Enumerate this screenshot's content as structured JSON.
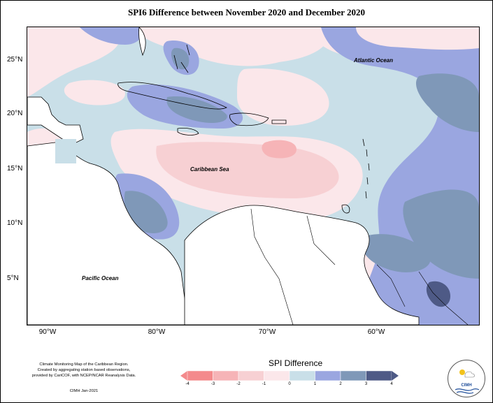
{
  "title": "SPI6 Difference between November 2020 and December 2020",
  "latitude_labels": [
    "25°N",
    "20°N",
    "15°N",
    "10°N",
    "5°N"
  ],
  "longitude_labels": [
    "90°W",
    "80°W",
    "70°W",
    "60°W"
  ],
  "places": {
    "atlantic": "Atlantic Ocean",
    "caribbean": "Caribbean Sea",
    "pacific": "Pacific Ocean"
  },
  "credit": {
    "line1": "Climate Monitoring Map of the Caribbean Region.",
    "line2": "Created by aggregating station based observations,",
    "line3": "provided by CariCOF, with NCEP/NCAR Reanalysis Data.",
    "stamp": "CIMH Jan-2021"
  },
  "legend": {
    "title": "SPI Difference",
    "ticks": [
      "-4",
      "-3",
      "-2",
      "-1",
      "0",
      "1",
      "2",
      "3",
      "4"
    ],
    "colors": [
      "#f48a8c",
      "#f6b4b7",
      "#f7d0d3",
      "#fbe7ea",
      "#ffffff",
      "#c9dfe8",
      "#9aa6e0",
      "#7f98b8",
      "#4e5a86"
    ]
  },
  "logo": {
    "text": "CIMH"
  },
  "palette": {
    "neg_strong": "#f48a8c",
    "neg_mid": "#f6b4b7",
    "neg_light": "#fbe7ea",
    "pos_light": "#c9dfe8",
    "pos_mid": "#9aa6e0",
    "pos_strong": "#7f98b8",
    "pos_vstrong": "#4e5a86"
  }
}
